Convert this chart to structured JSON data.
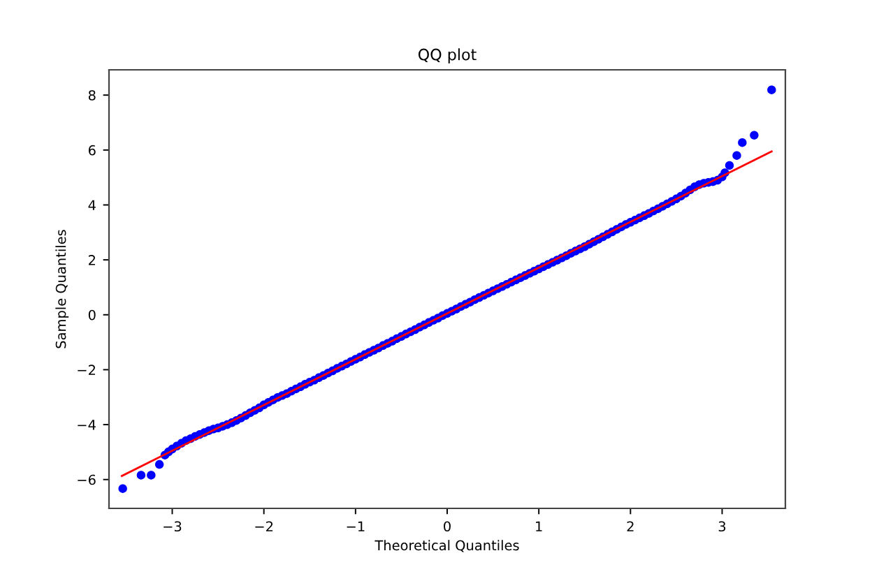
{
  "chart_data": {
    "type": "scatter",
    "title": "QQ plot",
    "xlabel": "Theoretical Quantiles",
    "ylabel": "Sample Quantiles",
    "xlim": [
      -3.69,
      3.69
    ],
    "ylim": [
      -7.05,
      8.92
    ],
    "xticks": [
      -3,
      -2,
      -1,
      0,
      1,
      2,
      3
    ],
    "yticks": [
      -6,
      -4,
      -2,
      0,
      2,
      4,
      6,
      8
    ],
    "grid": false,
    "series": [
      {
        "color": "#0000ff",
        "marker": "circle",
        "x": [
          -3.54,
          -3.34,
          -3.23,
          -3.14,
          -3.08,
          -3.04,
          -3.0,
          -2.95,
          -2.9,
          -2.85,
          -2.8,
          -2.75,
          -2.7,
          -2.65,
          -2.6,
          -2.55,
          -2.5,
          -2.45,
          -2.4,
          -2.35,
          -2.3,
          -2.25,
          -2.2,
          -2.15,
          -2.1,
          -2.05,
          -2.0,
          -1.95,
          -1.9,
          -1.85,
          -1.8,
          -1.75,
          -1.7,
          -1.65,
          -1.6,
          -1.55,
          -1.5,
          -1.45,
          -1.4,
          -1.35,
          -1.3,
          -1.25,
          -1.2,
          -1.15,
          -1.1,
          -1.05,
          -1.0,
          -0.95,
          -0.9,
          -0.85,
          -0.8,
          -0.75,
          -0.7,
          -0.65,
          -0.6,
          -0.55,
          -0.5,
          -0.45,
          -0.4,
          -0.35,
          -0.3,
          -0.25,
          -0.2,
          -0.15,
          -0.1,
          -0.05,
          0.0,
          0.05,
          0.1,
          0.15,
          0.2,
          0.25,
          0.3,
          0.35,
          0.4,
          0.45,
          0.5,
          0.55,
          0.6,
          0.65,
          0.7,
          0.75,
          0.8,
          0.85,
          0.9,
          0.95,
          1.0,
          1.05,
          1.1,
          1.15,
          1.2,
          1.25,
          1.3,
          1.35,
          1.4,
          1.45,
          1.5,
          1.55,
          1.6,
          1.65,
          1.7,
          1.75,
          1.8,
          1.85,
          1.9,
          1.95,
          2.0,
          2.05,
          2.1,
          2.15,
          2.2,
          2.25,
          2.3,
          2.35,
          2.4,
          2.45,
          2.5,
          2.55,
          2.6,
          2.65,
          2.7,
          2.75,
          2.8,
          2.85,
          2.9,
          2.95,
          3.0,
          3.03,
          3.08,
          3.16,
          3.22,
          3.35,
          3.54
        ],
        "values": [
          -6.33,
          -5.84,
          -5.84,
          -5.45,
          -5.11,
          -4.99,
          -4.89,
          -4.78,
          -4.68,
          -4.58,
          -4.51,
          -4.43,
          -4.36,
          -4.29,
          -4.22,
          -4.16,
          -4.12,
          -4.06,
          -4.0,
          -3.93,
          -3.85,
          -3.76,
          -3.67,
          -3.57,
          -3.48,
          -3.39,
          -3.28,
          -3.19,
          -3.1,
          -3.01,
          -2.94,
          -2.87,
          -2.78,
          -2.7,
          -2.62,
          -2.53,
          -2.45,
          -2.38,
          -2.29,
          -2.21,
          -2.12,
          -2.04,
          -1.95,
          -1.87,
          -1.79,
          -1.7,
          -1.62,
          -1.54,
          -1.45,
          -1.37,
          -1.29,
          -1.21,
          -1.12,
          -1.04,
          -0.96,
          -0.87,
          -0.79,
          -0.7,
          -0.62,
          -0.54,
          -0.45,
          -0.37,
          -0.28,
          -0.2,
          -0.12,
          -0.03,
          0.05,
          0.13,
          0.21,
          0.3,
          0.38,
          0.46,
          0.55,
          0.63,
          0.71,
          0.79,
          0.87,
          0.95,
          1.03,
          1.11,
          1.19,
          1.27,
          1.35,
          1.43,
          1.51,
          1.59,
          1.67,
          1.75,
          1.83,
          1.91,
          1.99,
          2.07,
          2.15,
          2.24,
          2.32,
          2.4,
          2.48,
          2.57,
          2.66,
          2.75,
          2.84,
          2.93,
          3.02,
          3.11,
          3.2,
          3.29,
          3.37,
          3.45,
          3.53,
          3.61,
          3.69,
          3.78,
          3.86,
          3.95,
          4.04,
          4.13,
          4.22,
          4.32,
          4.43,
          4.55,
          4.66,
          4.74,
          4.79,
          4.82,
          4.85,
          4.9,
          5.02,
          5.17,
          5.44,
          5.8,
          6.27,
          6.54,
          8.19
        ]
      },
      {
        "type": "line",
        "color": "#ff0000",
        "x": [
          -3.55,
          3.54
        ],
        "values": [
          -5.87,
          5.95
        ]
      }
    ]
  }
}
